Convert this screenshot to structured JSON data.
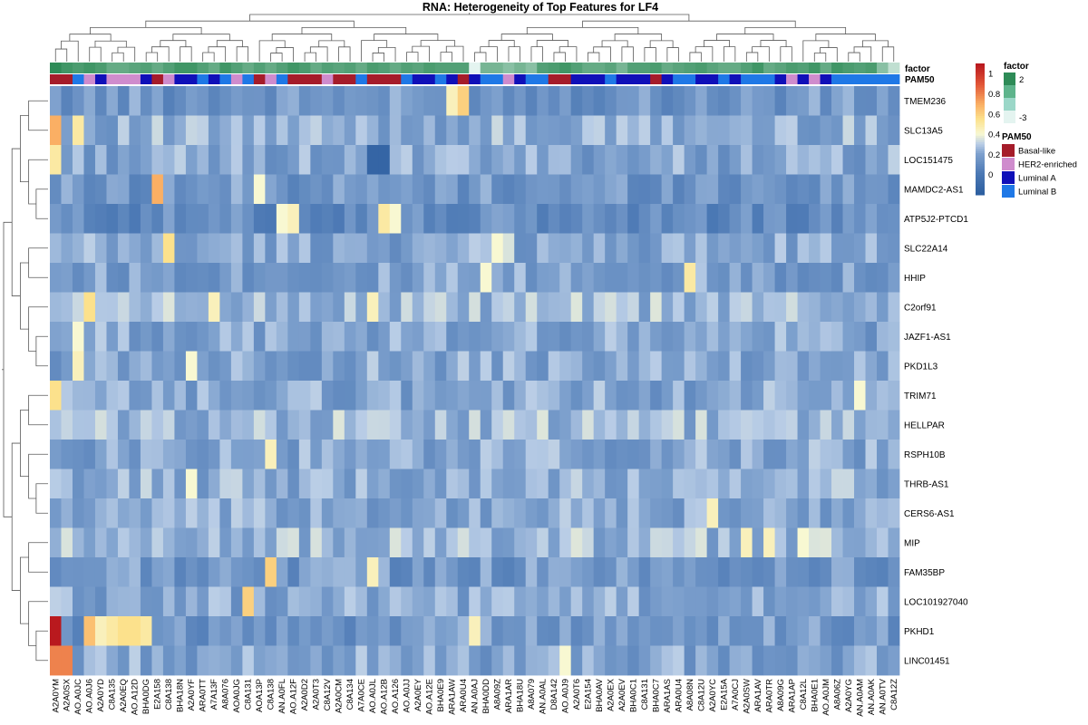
{
  "chart_data": {
    "type": "heatmap",
    "title": "RNA: Heterogeneity of Top Features for LF4",
    "rows": [
      "TMEM236",
      "SLC13A5",
      "LOC151475",
      "MAMDC2-AS1",
      "ATP5J2-PTCD1",
      "SLC22A14",
      "HHIP",
      "C2orf91",
      "JAZF1-AS1",
      "PKD1L3",
      "TRIM71",
      "HELLPAR",
      "RSPH10B",
      "THRB-AS1",
      "CERS6-AS1",
      "MIP",
      "FAM35BP",
      "LOC101927040",
      "PKHD1",
      "LINC01451"
    ],
    "columns": [
      "A2A0YM",
      "A2A0SX",
      "AO.A0JC",
      "AO.A0J6",
      "A2A0YD",
      "C8A135",
      "A2A0EQ",
      "AO.A12D",
      "BHA0DG",
      "E2A158",
      "C8A138",
      "BHA18N",
      "A2A0YF",
      "ARA0TT",
      "A7A13F",
      "A8A076",
      "AOA0JG",
      "C8A131",
      "AOA13P",
      "C8A138",
      "AN.A0FL",
      "AO.A12F",
      "A2A0D2",
      "A2A0T3",
      "C8A12V",
      "A2A0CM",
      "C8A134",
      "A7A0CE",
      "AO.A0JL",
      "AO.A12B",
      "AO.A126",
      "AO.A0JJ",
      "A2A0EY",
      "AO.A12E",
      "BHA0E9",
      "ARA1AW",
      "ARA0U4",
      "AN.A0AJ",
      "BHA0DD",
      "A8A09Z",
      "ARA1AR",
      "BHA18U",
      "A8A079",
      "AN.A0AL",
      "D8A142",
      "AO.A0J9",
      "A2A0T6",
      "E2A154",
      "BHA0AV",
      "A2A0EX",
      "A2A0EV",
      "BHA0C1",
      "C8A131",
      "BHA0C7",
      "ARA1AS",
      "ARA0U4",
      "A8A08N",
      "C8A12U",
      "A2A0YC",
      "E2A15A",
      "A7A0CJ",
      "A2A0SW",
      "ARA1AV",
      "ARA0TR",
      "A8A09G",
      "ARA1AP",
      "C8A12L",
      "BHA0E1",
      "AO.A0JM",
      "A8A06Z",
      "A2A0YG",
      "AN.A0AM",
      "AN.A0AK",
      "AN.A0TV",
      "C8A12Z"
    ],
    "color_scale": {
      "min": -0.2,
      "max": 1.1,
      "ticks": [
        0,
        0.2,
        0.4,
        0.6,
        0.8,
        1
      ]
    },
    "annotations": [
      {
        "name": "factor",
        "legend": [
          "2",
          "-3"
        ]
      },
      {
        "name": "PAM50",
        "legend": [
          "Basal-like",
          "HER2-enriched",
          "Luminal A",
          "Luminal B"
        ]
      }
    ],
    "pam50": [
      "Basal-like",
      "Basal-like",
      "Luminal B",
      "HER2-enriched",
      "Luminal A",
      "HER2-enriched",
      "HER2-enriched",
      "HER2-enriched",
      "Luminal A",
      "Basal-like",
      "HER2-enriched",
      "Luminal A",
      "Luminal A",
      "Luminal B",
      "Luminal A",
      "Luminal B",
      "HER2-enriched",
      "Luminal B",
      "Basal-like",
      "HER2-enriched",
      "Luminal B",
      "Basal-like",
      "Basal-like",
      "Basal-like",
      "HER2-enriched",
      "Basal-like",
      "Basal-like",
      "Luminal B",
      "Basal-like",
      "Basal-like",
      "Basal-like",
      "Luminal B",
      "Luminal A",
      "Luminal A",
      "Luminal B",
      "Luminal A",
      "Basal-like",
      "Luminal A",
      "Luminal B",
      "Luminal B",
      "HER2-enriched",
      "Luminal A",
      "Luminal B",
      "Luminal B",
      "Basal-like",
      "Basal-like",
      "Luminal A",
      "Luminal A",
      "Luminal A",
      "Luminal B",
      "Luminal A",
      "Luminal A",
      "Luminal A",
      "Basal-like",
      "Luminal A",
      "Luminal B",
      "Luminal B",
      "Luminal A",
      "Luminal A",
      "Luminal B",
      "Luminal A",
      "Luminal B",
      "Luminal B",
      "Luminal B",
      "Luminal A",
      "HER2-enriched",
      "Luminal A",
      "HER2-enriched",
      "Luminal A",
      "Luminal B",
      "Luminal B",
      "Luminal B",
      "Luminal B",
      "Luminal B",
      "Luminal B"
    ],
    "factor": [
      2,
      1.5,
      1.2,
      1.5,
      1.2,
      0.5,
      0.5,
      0.8,
      1,
      0.5,
      1,
      1.5,
      1.5,
      1,
      0.5,
      1.5,
      1,
      0.5,
      1,
      0.5,
      1,
      1.5,
      1.2,
      0.5,
      1,
      0.8,
      1,
      0.5,
      1.2,
      1,
      0.5,
      1,
      0.8,
      1.2,
      1,
      1,
      1,
      -3,
      0,
      0,
      -0.5,
      0,
      -0.5,
      1,
      1.2,
      1.5,
      1,
      0.5,
      0.5,
      0.8,
      0,
      1,
      1,
      1.2,
      0.5,
      0.8,
      1,
      1.2,
      0.8,
      0.5,
      0.5,
      1,
      1.5,
      0.5,
      0.8,
      1.2,
      1,
      1.5,
      0.5,
      1.5,
      1.2,
      1,
      1.2,
      -0.5,
      -2
    ],
    "heat_base": [
      0.15,
      0.22,
      0.2,
      0.15,
      0.1,
      0.2,
      0.18,
      0.25,
      0.2,
      0.2,
      0.2,
      0.25,
      0.2,
      0.22,
      0.2,
      0.25,
      0.15,
      0.2,
      0.15,
      0.2
    ],
    "heat_overrides": [
      {
        "row": 0,
        "col": 35,
        "v": 0.45
      },
      {
        "row": 0,
        "col": 36,
        "v": 0.6
      },
      {
        "row": 1,
        "col": 0,
        "v": 0.7
      },
      {
        "row": 1,
        "col": 2,
        "v": 0.5
      },
      {
        "row": 2,
        "col": 0,
        "v": 0.5
      },
      {
        "row": 2,
        "col": 28,
        "v": -0.15
      },
      {
        "row": 2,
        "col": 29,
        "v": -0.15
      },
      {
        "row": 3,
        "col": 9,
        "v": 0.7
      },
      {
        "row": 3,
        "col": 18,
        "v": 0.4
      },
      {
        "row": 4,
        "col": 20,
        "v": 0.4
      },
      {
        "row": 4,
        "col": 21,
        "v": 0.45
      },
      {
        "row": 4,
        "col": 29,
        "v": 0.5
      },
      {
        "row": 4,
        "col": 30,
        "v": 0.4
      },
      {
        "row": 5,
        "col": 10,
        "v": 0.55
      },
      {
        "row": 5,
        "col": 39,
        "v": 0.4
      },
      {
        "row": 5,
        "col": 40,
        "v": 0.35
      },
      {
        "row": 6,
        "col": 38,
        "v": 0.4
      },
      {
        "row": 6,
        "col": 56,
        "v": 0.5
      },
      {
        "row": 7,
        "col": 3,
        "v": 0.55
      },
      {
        "row": 7,
        "col": 14,
        "v": 0.45
      },
      {
        "row": 7,
        "col": 28,
        "v": 0.45
      },
      {
        "row": 8,
        "col": 2,
        "v": 0.4
      },
      {
        "row": 9,
        "col": 2,
        "v": 0.45
      },
      {
        "row": 9,
        "col": 12,
        "v": 0.4
      },
      {
        "row": 10,
        "col": 0,
        "v": 0.55
      },
      {
        "row": 10,
        "col": 71,
        "v": 0.4
      },
      {
        "row": 12,
        "col": 19,
        "v": 0.45
      },
      {
        "row": 13,
        "col": 12,
        "v": 0.4
      },
      {
        "row": 14,
        "col": 58,
        "v": 0.45
      },
      {
        "row": 15,
        "col": 61,
        "v": 0.45
      },
      {
        "row": 15,
        "col": 63,
        "v": 0.45
      },
      {
        "row": 15,
        "col": 66,
        "v": 0.4
      },
      {
        "row": 16,
        "col": 19,
        "v": 0.6
      },
      {
        "row": 16,
        "col": 28,
        "v": 0.45
      },
      {
        "row": 17,
        "col": 17,
        "v": 0.6
      },
      {
        "row": 18,
        "col": 0,
        "v": 1.1
      },
      {
        "row": 18,
        "col": 3,
        "v": 0.65
      },
      {
        "row": 18,
        "col": 4,
        "v": 0.45
      },
      {
        "row": 18,
        "col": 5,
        "v": 0.5
      },
      {
        "row": 18,
        "col": 6,
        "v": 0.55
      },
      {
        "row": 18,
        "col": 7,
        "v": 0.55
      },
      {
        "row": 18,
        "col": 8,
        "v": 0.5
      },
      {
        "row": 18,
        "col": 37,
        "v": 0.45
      },
      {
        "row": 19,
        "col": 0,
        "v": 0.8
      },
      {
        "row": 19,
        "col": 1,
        "v": 0.8
      },
      {
        "row": 19,
        "col": 45,
        "v": 0.4
      }
    ],
    "xlabel": "",
    "ylabel": ""
  }
}
